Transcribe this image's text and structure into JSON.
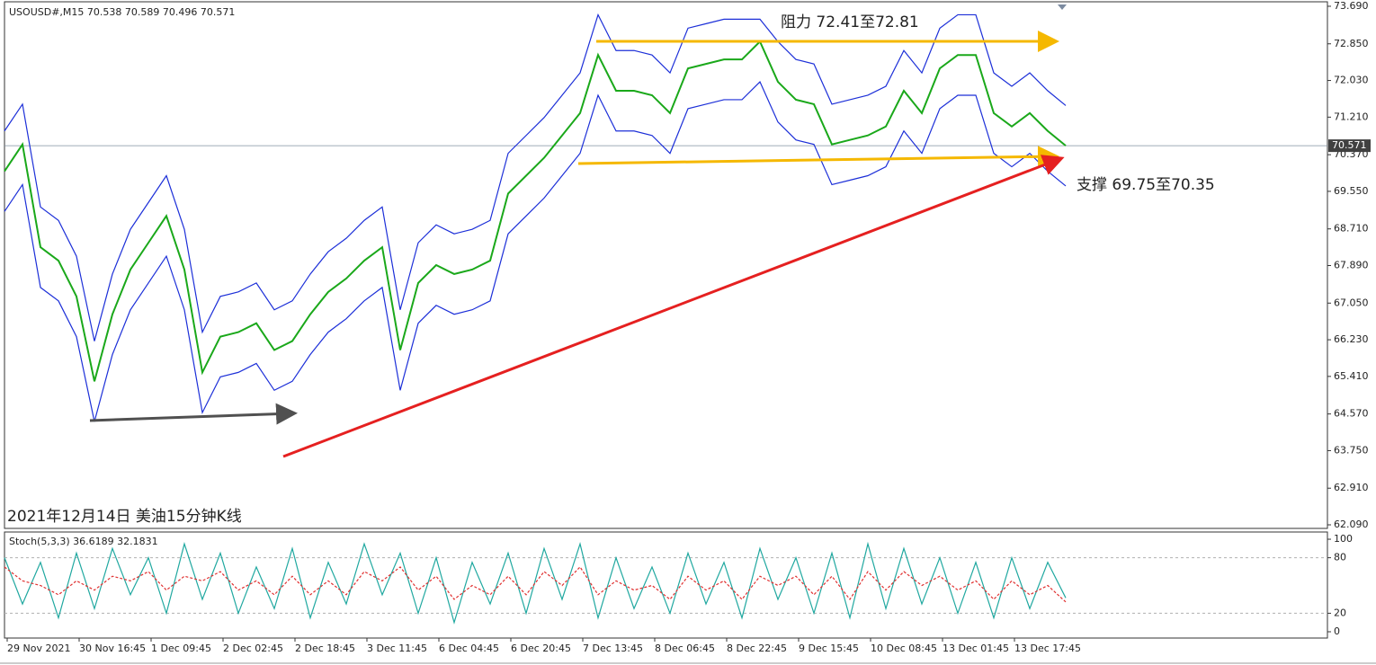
{
  "chart_data": [
    {
      "type": "line",
      "title": "USOUSD#,M15  70.538 70.589 70.496 70.571",
      "annotations": [
        "阻力 72.41至72.81",
        "支撑 69.75至70.35",
        "2021年12月14日 美油15分钟K线"
      ],
      "x_labels": [
        "29 Nov 2021",
        "30 Nov 16:45",
        "1 Dec 09:45",
        "2 Dec 02:45",
        "2 Dec 18:45",
        "3 Dec 11:45",
        "6 Dec 04:45",
        "6 Dec 20:45",
        "7 Dec 13:45",
        "8 Dec 06:45",
        "8 Dec 22:45",
        "9 Dec 15:45",
        "10 Dec 08:45",
        "13 Dec 01:45",
        "13 Dec 17:45"
      ],
      "ylim": [
        62.01,
        73.79
      ],
      "yticks": [
        {
          "value": 62.09,
          "label": "62.090"
        },
        {
          "value": 62.91,
          "label": "62.910"
        },
        {
          "value": 63.75,
          "label": "63.750"
        },
        {
          "value": 64.57,
          "label": "64.570"
        },
        {
          "value": 65.41,
          "label": "65.410"
        },
        {
          "value": 66.23,
          "label": "66.230"
        },
        {
          "value": 67.05,
          "label": "67.050"
        },
        {
          "value": 67.89,
          "label": "67.890"
        },
        {
          "value": 68.71,
          "label": "68.710"
        },
        {
          "value": 69.55,
          "label": "69.550"
        },
        {
          "value": 70.37,
          "label": "70.370"
        },
        {
          "value": 71.21,
          "label": "71.210"
        },
        {
          "value": 72.03,
          "label": "72.030"
        },
        {
          "value": 72.85,
          "label": "72.850"
        },
        {
          "value": 73.69,
          "label": "73.690"
        }
      ],
      "last_price": 70.571,
      "series": [
        {
          "name": "Upper band",
          "color": "#1c2fd8",
          "values": [
            70.9,
            71.5,
            69.2,
            68.9,
            68.1,
            66.2,
            67.7,
            68.7,
            69.3,
            69.9,
            68.7,
            66.4,
            67.2,
            67.3,
            67.5,
            66.9,
            67.1,
            67.7,
            68.2,
            68.5,
            68.9,
            69.2,
            66.9,
            68.4,
            68.8,
            68.6,
            68.7,
            68.9,
            70.4,
            70.8,
            71.2,
            71.7,
            72.2,
            73.5,
            72.7,
            72.7,
            72.6,
            72.2,
            73.2,
            73.3,
            73.4,
            73.4,
            73.4,
            72.9,
            72.5,
            72.4,
            71.5,
            71.6,
            71.7,
            71.9,
            72.7,
            72.2,
            73.2,
            73.5,
            73.5,
            72.2,
            71.9,
            72.2,
            71.8,
            71.47
          ]
        },
        {
          "name": "Lower band",
          "color": "#1c2fd8",
          "values": [
            69.1,
            69.7,
            67.4,
            67.1,
            66.3,
            64.4,
            65.9,
            66.9,
            67.5,
            68.1,
            66.9,
            64.6,
            65.4,
            65.5,
            65.7,
            65.1,
            65.3,
            65.9,
            66.4,
            66.7,
            67.1,
            67.4,
            65.1,
            66.6,
            67.0,
            66.8,
            66.9,
            67.1,
            68.6,
            69.0,
            69.4,
            69.9,
            70.4,
            71.7,
            70.9,
            70.9,
            70.8,
            70.4,
            71.4,
            71.5,
            71.6,
            71.6,
            72.0,
            71.1,
            70.7,
            70.6,
            69.7,
            69.8,
            69.9,
            70.1,
            70.9,
            70.4,
            71.4,
            71.7,
            71.7,
            70.4,
            70.1,
            70.4,
            70.0,
            69.67
          ]
        },
        {
          "name": "Price",
          "color": "#1aa81a",
          "values": [
            70.0,
            70.6,
            68.3,
            68.0,
            67.2,
            65.3,
            66.8,
            67.8,
            68.4,
            69.0,
            67.8,
            65.5,
            66.3,
            66.4,
            66.6,
            66.0,
            66.2,
            66.8,
            67.3,
            67.6,
            68.0,
            68.3,
            66.0,
            67.5,
            67.9,
            67.7,
            67.8,
            68.0,
            69.5,
            69.9,
            70.3,
            70.8,
            71.3,
            72.6,
            71.8,
            71.8,
            71.7,
            71.3,
            72.3,
            72.4,
            72.5,
            72.5,
            72.9,
            72.0,
            71.6,
            71.5,
            70.6,
            70.7,
            70.8,
            71.0,
            71.8,
            71.3,
            72.3,
            72.6,
            72.6,
            71.3,
            71.0,
            71.3,
            70.9,
            70.571
          ]
        }
      ]
    },
    {
      "type": "line",
      "title": "Stoch(5,3,3) 36.6189 32.1831",
      "ylim": [
        -6.8,
        107.8
      ],
      "yticks": [
        0,
        20,
        80,
        100
      ],
      "levels": [
        20,
        80
      ],
      "series": [
        {
          "name": "Main",
          "color": "#20a8a0",
          "values": [
            80,
            30,
            75,
            15,
            85,
            25,
            90,
            40,
            80,
            20,
            95,
            35,
            85,
            20,
            70,
            25,
            90,
            15,
            75,
            30,
            95,
            40,
            85,
            20,
            80,
            10,
            75,
            30,
            85,
            20,
            90,
            35,
            95,
            15,
            80,
            25,
            70,
            20,
            85,
            30,
            75,
            15,
            90,
            35,
            80,
            20,
            85,
            15,
            95,
            25,
            90,
            30,
            80,
            20,
            75,
            15,
            80,
            25,
            75,
            36.6189
          ]
        },
        {
          "name": "Signal",
          "color": "#e03030",
          "dash": true,
          "values": [
            70,
            55,
            50,
            40,
            55,
            45,
            60,
            55,
            65,
            45,
            60,
            55,
            65,
            45,
            55,
            40,
            60,
            40,
            55,
            40,
            65,
            55,
            70,
            45,
            60,
            35,
            50,
            40,
            60,
            40,
            65,
            50,
            70,
            40,
            55,
            45,
            50,
            35,
            60,
            45,
            55,
            35,
            60,
            50,
            60,
            40,
            60,
            35,
            65,
            45,
            65,
            50,
            60,
            45,
            55,
            35,
            55,
            40,
            50,
            32.1831
          ]
        }
      ]
    }
  ]
}
